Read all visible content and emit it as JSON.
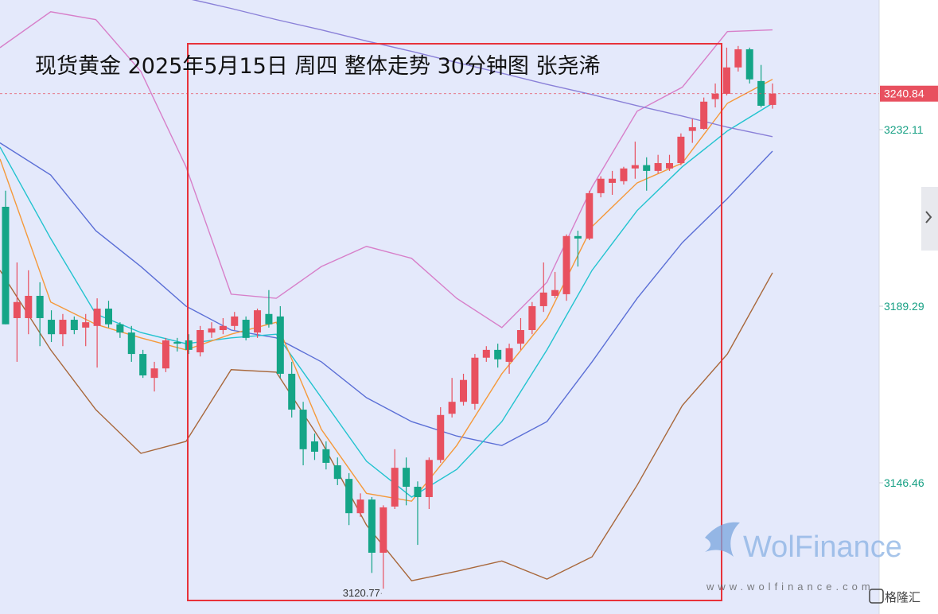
{
  "chart_data": {
    "type": "candlestick",
    "title": "现货黄金 2025年5月15日 周四 整体走势 30分钟图 张尧浠",
    "ylim": [
      3114.64,
      3263.55
    ],
    "yticks": [
      3146.46,
      3189.29,
      3232.11
    ],
    "last_price": 3240.84,
    "up_color": "#e8505f",
    "down_color": "#14a587",
    "open": [
      3213.4,
      3186.4,
      3186.4,
      3191.8,
      3186.0,
      3182.5,
      3186.0,
      3184.1,
      3184.5,
      3188.7,
      3184.9,
      3182.9,
      3177.7,
      3171.9,
      3174.2,
      3180.6,
      3181.0,
      3178.1,
      3182.9,
      3183.5,
      3184.5,
      3186.0,
      3182.9,
      3187.4,
      3186.8,
      3172.9,
      3164.2,
      3156.5,
      3154.6,
      3150.7,
      3147.4,
      3139.1,
      3142.4,
      3129.5,
      3140.7,
      3150.1,
      3145.5,
      3143.0,
      3152.0,
      3163.2,
      3166.1,
      3165.6,
      3176.8,
      3178.7,
      3175.8,
      3180.2,
      3183.5,
      3189.3,
      3191.8,
      3192.2,
      3206.3,
      3205.7,
      3216.7,
      3219.2,
      3219.6,
      3222.7,
      3223.5,
      3222.1,
      3222.7,
      3224.0,
      3231.8,
      3232.3,
      3239.5,
      3240.8,
      3247.2,
      3251.6,
      3243.9,
      3238.1
    ],
    "high": [
      3217.3,
      3199.9,
      3198.0,
      3195.1,
      3188.3,
      3187.4,
      3186.8,
      3187.4,
      3191.2,
      3190.6,
      3185.4,
      3184.5,
      3178.7,
      3175.8,
      3181.6,
      3181.6,
      3182.5,
      3184.5,
      3185.4,
      3186.4,
      3187.9,
      3186.8,
      3188.7,
      3193.2,
      3189.3,
      3175.8,
      3166.1,
      3158.4,
      3156.5,
      3152.6,
      3148.8,
      3143.9,
      3143.0,
      3141.0,
      3154.6,
      3152.6,
      3146.8,
      3152.6,
      3164.8,
      3171.9,
      3172.9,
      3177.7,
      3179.6,
      3180.2,
      3180.2,
      3186.4,
      3190.3,
      3199.9,
      3197.6,
      3206.7,
      3207.6,
      3217.3,
      3220.8,
      3222.1,
      3223.1,
      3229.2,
      3225.4,
      3226.0,
      3226.0,
      3231.2,
      3234.7,
      3239.9,
      3243.3,
      3252.0,
      3252.4,
      3252.0,
      3247.8,
      3243.3
    ],
    "low": [
      3184.9,
      3175.8,
      3182.5,
      3179.6,
      3180.6,
      3179.6,
      3182.5,
      3179.6,
      3174.4,
      3184.1,
      3181.6,
      3175.8,
      3171.9,
      3168.6,
      3173.3,
      3178.3,
      3177.7,
      3177.1,
      3181.6,
      3182.5,
      3183.5,
      3181.0,
      3181.6,
      3184.1,
      3171.9,
      3162.3,
      3150.7,
      3152.0,
      3149.7,
      3145.9,
      3136.2,
      3138.2,
      3124.6,
      3120.77,
      3140.1,
      3141.0,
      3131.4,
      3140.1,
      3151.3,
      3162.3,
      3165.2,
      3164.2,
      3175.8,
      3174.4,
      3172.9,
      3178.7,
      3182.5,
      3187.9,
      3191.2,
      3190.6,
      3198.9,
      3205.3,
      3215.7,
      3216.3,
      3218.8,
      3220.2,
      3217.3,
      3221.5,
      3222.1,
      3223.5,
      3228.9,
      3232.1,
      3237.5,
      3240.4,
      3246.2,
      3243.3,
      3237.5,
      3237.2
    ],
    "close": [
      3184.9,
      3190.3,
      3191.8,
      3186.4,
      3182.5,
      3186.0,
      3183.5,
      3185.4,
      3188.7,
      3184.9,
      3182.9,
      3177.7,
      3172.5,
      3174.2,
      3181.0,
      3180.2,
      3178.7,
      3183.5,
      3183.9,
      3184.5,
      3186.8,
      3181.6,
      3188.3,
      3184.9,
      3172.9,
      3164.2,
      3154.6,
      3154.0,
      3151.3,
      3147.4,
      3139.1,
      3142.4,
      3129.5,
      3140.5,
      3150.1,
      3145.5,
      3143.0,
      3152.0,
      3162.9,
      3166.1,
      3171.4,
      3176.8,
      3178.7,
      3176.4,
      3179.1,
      3183.5,
      3189.3,
      3192.6,
      3193.2,
      3206.3,
      3205.7,
      3216.7,
      3220.2,
      3220.2,
      3222.7,
      3223.5,
      3222.1,
      3224.0,
      3224.0,
      3230.4,
      3232.7,
      3238.9,
      3240.8,
      3247.2,
      3251.6,
      3244.3,
      3237.9,
      3240.84
    ],
    "overlays": [
      {
        "color": "#d77fc9",
        "values": [
          3252.0,
          3260.7,
          3258.8,
          3246.2,
          3223.1,
          3192.2,
          3191.2,
          3198.9,
          3203.8,
          3200.9,
          3191.2,
          3184.1,
          3195.1,
          3218.2,
          3236.6,
          3242.4,
          3255.9,
          3256.3
        ]
      },
      {
        "color": "#a8673a",
        "values": [
          3198.0,
          3178.7,
          3164.2,
          3153.6,
          3156.5,
          3173.9,
          3173.3,
          3156.5,
          3136.2,
          3122.7,
          3125.0,
          3127.5,
          3123.1,
          3128.5,
          3145.9,
          3165.2,
          3177.7,
          3197.4
        ]
      },
      {
        "color": "#5b6fd6",
        "values": [
          3228.9,
          3221.1,
          3207.6,
          3198.9,
          3189.3,
          3183.5,
          3181.6,
          3175.8,
          3167.1,
          3161.3,
          3157.8,
          3155.5,
          3161.3,
          3175.8,
          3191.2,
          3204.7,
          3215.4,
          3226.9
        ]
      },
      {
        "color": "#22c3cf",
        "values": [
          3227.9,
          3205.7,
          3187.4,
          3182.9,
          3180.2,
          3181.6,
          3182.5,
          3167.1,
          3151.7,
          3143.0,
          3149.7,
          3161.3,
          3178.7,
          3198.0,
          3212.5,
          3223.1,
          3231.8,
          3238.5
        ]
      },
      {
        "color": "#f5993a",
        "values": [
          3225.0,
          3190.3,
          3184.9,
          3181.6,
          3178.7,
          3182.5,
          3185.4,
          3159.4,
          3143.9,
          3142.0,
          3155.5,
          3172.9,
          3186.4,
          3208.6,
          3219.2,
          3224.0,
          3238.5,
          3244.3
        ]
      },
      {
        "color": "#8a80d8",
        "values": [
          3274.4,
          3271.9,
          3269.2,
          3266.7,
          3264.0,
          3261.5,
          3258.8,
          3256.3,
          3253.6,
          3251.1,
          3248.4,
          3245.8,
          3243.1,
          3240.6,
          3237.9,
          3235.4,
          3232.7,
          3230.4
        ]
      }
    ],
    "watermark": {
      "brand": "WolFinance",
      "url": "www.wolfinance.com"
    },
    "source": "格隆汇"
  }
}
